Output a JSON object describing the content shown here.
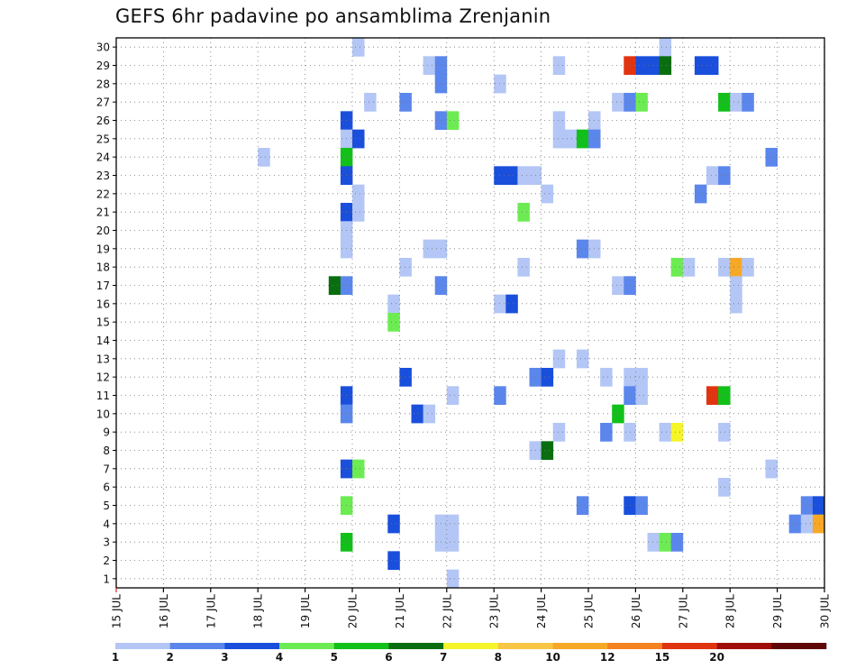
{
  "title": "GEFS 6hr padavine po ansamblima Zrenjanin",
  "chart_data": {
    "type": "heatmap",
    "title": "GEFS 6hr padavine po ansamblima Zrenjanin",
    "xlabel": "",
    "ylabel": "",
    "x_ticks": [
      "15 JUL",
      "16 JUL",
      "17 JUL",
      "18 JUL",
      "19 JUL",
      "20 JUL",
      "21 JUL",
      "22 JUL",
      "23 JUL",
      "24 JUL",
      "25 JUL",
      "26 JUL",
      "27 JUL",
      "28 JUL",
      "29 JUL",
      "30 JUL"
    ],
    "y_ticks": [
      1,
      2,
      3,
      4,
      5,
      6,
      7,
      8,
      9,
      10,
      11,
      12,
      13,
      14,
      15,
      16,
      17,
      18,
      19,
      20,
      21,
      22,
      23,
      24,
      25,
      26,
      27,
      28,
      29,
      30
    ],
    "xlim": [
      15,
      30
    ],
    "ylim": [
      0.5,
      30.5
    ],
    "grid": true,
    "legend_placement": "bottom",
    "color_scale": {
      "labels": [
        "1",
        "2",
        "3",
        "4",
        "5",
        "6",
        "7",
        "8",
        "10",
        "12",
        "15",
        "20",
        ""
      ],
      "colors": [
        "#b3c6f5",
        "#5b86ec",
        "#1a4fdc",
        "#6cec52",
        "#12c01a",
        "#0a6e10",
        "#f5f52a",
        "#f8c545",
        "#f7a826",
        "#f48220",
        "#e03410",
        "#a00e08",
        "#600808"
      ]
    },
    "cells": [
      {
        "date": 20.125,
        "member": 30,
        "cls": 0
      },
      {
        "date": 26.625,
        "member": 30,
        "cls": 0
      },
      {
        "date": 21.625,
        "member": 29,
        "cls": 0
      },
      {
        "date": 21.875,
        "member": 29,
        "cls": 1
      },
      {
        "date": 24.375,
        "member": 29,
        "cls": 0
      },
      {
        "date": 25.875,
        "member": 29,
        "cls": 10
      },
      {
        "date": 26.125,
        "member": 29,
        "cls": 2
      },
      {
        "date": 26.375,
        "member": 29,
        "cls": 2
      },
      {
        "date": 26.625,
        "member": 29,
        "cls": 5
      },
      {
        "date": 27.375,
        "member": 29,
        "cls": 2
      },
      {
        "date": 27.625,
        "member": 29,
        "cls": 2
      },
      {
        "date": 21.875,
        "member": 28,
        "cls": 1
      },
      {
        "date": 23.125,
        "member": 28,
        "cls": 0
      },
      {
        "date": 20.375,
        "member": 27,
        "cls": 0
      },
      {
        "date": 21.125,
        "member": 27,
        "cls": 1
      },
      {
        "date": 25.625,
        "member": 27,
        "cls": 0
      },
      {
        "date": 25.875,
        "member": 27,
        "cls": 1
      },
      {
        "date": 26.125,
        "member": 27,
        "cls": 3
      },
      {
        "date": 27.875,
        "member": 27,
        "cls": 4
      },
      {
        "date": 28.125,
        "member": 27,
        "cls": 0
      },
      {
        "date": 28.375,
        "member": 27,
        "cls": 1
      },
      {
        "date": 19.875,
        "member": 26,
        "cls": 2
      },
      {
        "date": 21.875,
        "member": 26,
        "cls": 1
      },
      {
        "date": 22.125,
        "member": 26,
        "cls": 3
      },
      {
        "date": 24.375,
        "member": 26,
        "cls": 0
      },
      {
        "date": 25.125,
        "member": 26,
        "cls": 0
      },
      {
        "date": 19.875,
        "member": 25,
        "cls": 0
      },
      {
        "date": 20.125,
        "member": 25,
        "cls": 2
      },
      {
        "date": 24.375,
        "member": 25,
        "cls": 0
      },
      {
        "date": 24.625,
        "member": 25,
        "cls": 0
      },
      {
        "date": 24.875,
        "member": 25,
        "cls": 4
      },
      {
        "date": 25.125,
        "member": 25,
        "cls": 1
      },
      {
        "date": 18.125,
        "member": 24,
        "cls": 0
      },
      {
        "date": 19.875,
        "member": 24,
        "cls": 4
      },
      {
        "date": 28.875,
        "member": 24,
        "cls": 1
      },
      {
        "date": 19.875,
        "member": 23,
        "cls": 2
      },
      {
        "date": 23.125,
        "member": 23,
        "cls": 2
      },
      {
        "date": 23.375,
        "member": 23,
        "cls": 2
      },
      {
        "date": 23.625,
        "member": 23,
        "cls": 0
      },
      {
        "date": 23.875,
        "member": 23,
        "cls": 0
      },
      {
        "date": 27.625,
        "member": 23,
        "cls": 0
      },
      {
        "date": 27.875,
        "member": 23,
        "cls": 1
      },
      {
        "date": 20.125,
        "member": 22,
        "cls": 0
      },
      {
        "date": 24.125,
        "member": 22,
        "cls": 0
      },
      {
        "date": 27.375,
        "member": 22,
        "cls": 1
      },
      {
        "date": 19.875,
        "member": 21,
        "cls": 2
      },
      {
        "date": 20.125,
        "member": 21,
        "cls": 0
      },
      {
        "date": 23.625,
        "member": 21,
        "cls": 3
      },
      {
        "date": 19.875,
        "member": 20,
        "cls": 0
      },
      {
        "date": 19.875,
        "member": 19,
        "cls": 0
      },
      {
        "date": 21.625,
        "member": 19,
        "cls": 0
      },
      {
        "date": 21.875,
        "member": 19,
        "cls": 0
      },
      {
        "date": 24.875,
        "member": 19,
        "cls": 1
      },
      {
        "date": 25.125,
        "member": 19,
        "cls": 0
      },
      {
        "date": 21.125,
        "member": 18,
        "cls": 0
      },
      {
        "date": 23.625,
        "member": 18,
        "cls": 0
      },
      {
        "date": 26.875,
        "member": 18,
        "cls": 3
      },
      {
        "date": 27.125,
        "member": 18,
        "cls": 0
      },
      {
        "date": 27.875,
        "member": 18,
        "cls": 0
      },
      {
        "date": 28.125,
        "member": 18,
        "cls": 8
      },
      {
        "date": 28.375,
        "member": 18,
        "cls": 0
      },
      {
        "date": 19.625,
        "member": 17,
        "cls": 5
      },
      {
        "date": 19.875,
        "member": 17,
        "cls": 1
      },
      {
        "date": 21.875,
        "member": 17,
        "cls": 1
      },
      {
        "date": 25.625,
        "member": 17,
        "cls": 0
      },
      {
        "date": 25.875,
        "member": 17,
        "cls": 1
      },
      {
        "date": 28.125,
        "member": 17,
        "cls": 0
      },
      {
        "date": 20.875,
        "member": 16,
        "cls": 0
      },
      {
        "date": 23.125,
        "member": 16,
        "cls": 0
      },
      {
        "date": 23.375,
        "member": 16,
        "cls": 2
      },
      {
        "date": 28.125,
        "member": 16,
        "cls": 0
      },
      {
        "date": 20.875,
        "member": 15,
        "cls": 3
      },
      {
        "date": 24.375,
        "member": 13,
        "cls": 0
      },
      {
        "date": 24.875,
        "member": 13,
        "cls": 0
      },
      {
        "date": 21.125,
        "member": 12,
        "cls": 2
      },
      {
        "date": 23.875,
        "member": 12,
        "cls": 1
      },
      {
        "date": 24.125,
        "member": 12,
        "cls": 2
      },
      {
        "date": 25.375,
        "member": 12,
        "cls": 0
      },
      {
        "date": 25.875,
        "member": 12,
        "cls": 0
      },
      {
        "date": 26.125,
        "member": 12,
        "cls": 0
      },
      {
        "date": 19.875,
        "member": 11,
        "cls": 2
      },
      {
        "date": 22.125,
        "member": 11,
        "cls": 0
      },
      {
        "date": 23.125,
        "member": 11,
        "cls": 1
      },
      {
        "date": 25.875,
        "member": 11,
        "cls": 1
      },
      {
        "date": 26.125,
        "member": 11,
        "cls": 0
      },
      {
        "date": 27.625,
        "member": 11,
        "cls": 10
      },
      {
        "date": 27.875,
        "member": 11,
        "cls": 4
      },
      {
        "date": 19.875,
        "member": 10,
        "cls": 1
      },
      {
        "date": 21.375,
        "member": 10,
        "cls": 2
      },
      {
        "date": 21.625,
        "member": 10,
        "cls": 0
      },
      {
        "date": 25.625,
        "member": 10,
        "cls": 4
      },
      {
        "date": 24.375,
        "member": 9,
        "cls": 0
      },
      {
        "date": 25.375,
        "member": 9,
        "cls": 1
      },
      {
        "date": 25.875,
        "member": 9,
        "cls": 0
      },
      {
        "date": 26.625,
        "member": 9,
        "cls": 0
      },
      {
        "date": 26.875,
        "member": 9,
        "cls": 6
      },
      {
        "date": 27.875,
        "member": 9,
        "cls": 0
      },
      {
        "date": 23.875,
        "member": 8,
        "cls": 0
      },
      {
        "date": 24.125,
        "member": 8,
        "cls": 5
      },
      {
        "date": 19.875,
        "member": 7,
        "cls": 2
      },
      {
        "date": 20.125,
        "member": 7,
        "cls": 3
      },
      {
        "date": 28.875,
        "member": 7,
        "cls": 0
      },
      {
        "date": 27.875,
        "member": 6,
        "cls": 0
      },
      {
        "date": 19.875,
        "member": 5,
        "cls": 3
      },
      {
        "date": 24.875,
        "member": 5,
        "cls": 1
      },
      {
        "date": 25.875,
        "member": 5,
        "cls": 2
      },
      {
        "date": 26.125,
        "member": 5,
        "cls": 1
      },
      {
        "date": 29.625,
        "member": 5,
        "cls": 1
      },
      {
        "date": 29.875,
        "member": 5,
        "cls": 2
      },
      {
        "date": 20.875,
        "member": 4,
        "cls": 2
      },
      {
        "date": 21.875,
        "member": 4,
        "cls": 0
      },
      {
        "date": 22.125,
        "member": 4,
        "cls": 0
      },
      {
        "date": 29.375,
        "member": 4,
        "cls": 1
      },
      {
        "date": 29.625,
        "member": 4,
        "cls": 0
      },
      {
        "date": 29.875,
        "member": 4,
        "cls": 8
      },
      {
        "date": 19.875,
        "member": 3,
        "cls": 4
      },
      {
        "date": 21.875,
        "member": 3,
        "cls": 0
      },
      {
        "date": 22.125,
        "member": 3,
        "cls": 0
      },
      {
        "date": 26.375,
        "member": 3,
        "cls": 0
      },
      {
        "date": 26.625,
        "member": 3,
        "cls": 3
      },
      {
        "date": 26.875,
        "member": 3,
        "cls": 1
      },
      {
        "date": 20.875,
        "member": 2,
        "cls": 2
      },
      {
        "date": 22.125,
        "member": 1,
        "cls": 0
      }
    ]
  }
}
